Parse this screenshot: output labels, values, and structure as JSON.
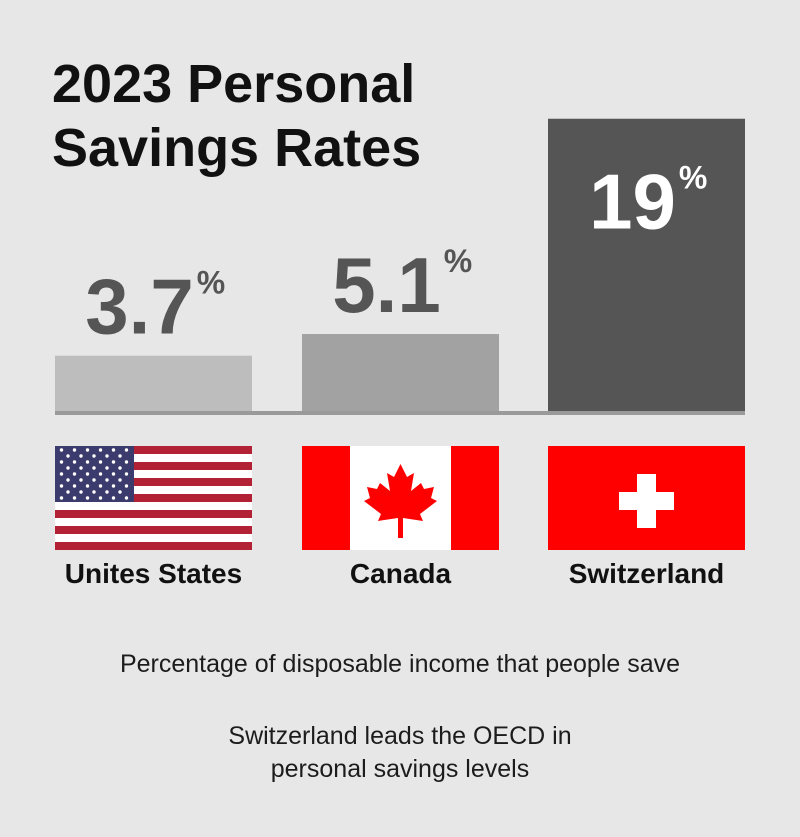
{
  "chart_data": {
    "type": "bar",
    "title_lines": [
      "2023 Personal",
      "Savings Rates"
    ],
    "categories": [
      "Unites States",
      "Canada",
      "Switzerland"
    ],
    "values": [
      3.7,
      5.1,
      19
    ],
    "value_labels": [
      "3.7",
      "5.1",
      "19"
    ],
    "unit": "%",
    "bar_colors": [
      "#bdbdbd",
      "#a2a2a2",
      "#555555"
    ],
    "label_colors": [
      "#555555",
      "#555555",
      "#ffffff"
    ],
    "axis_color": "#9a9a9a",
    "ylim": [
      0,
      19.5
    ],
    "xlabel": "",
    "ylabel": ""
  },
  "flags": [
    "us-flag-icon",
    "canada-flag-icon",
    "switzerland-flag-icon"
  ],
  "captions": {
    "line1": "Percentage of disposable income that people save",
    "line2a": "Switzerland leads the OECD in",
    "line2b": "personal savings levels"
  }
}
